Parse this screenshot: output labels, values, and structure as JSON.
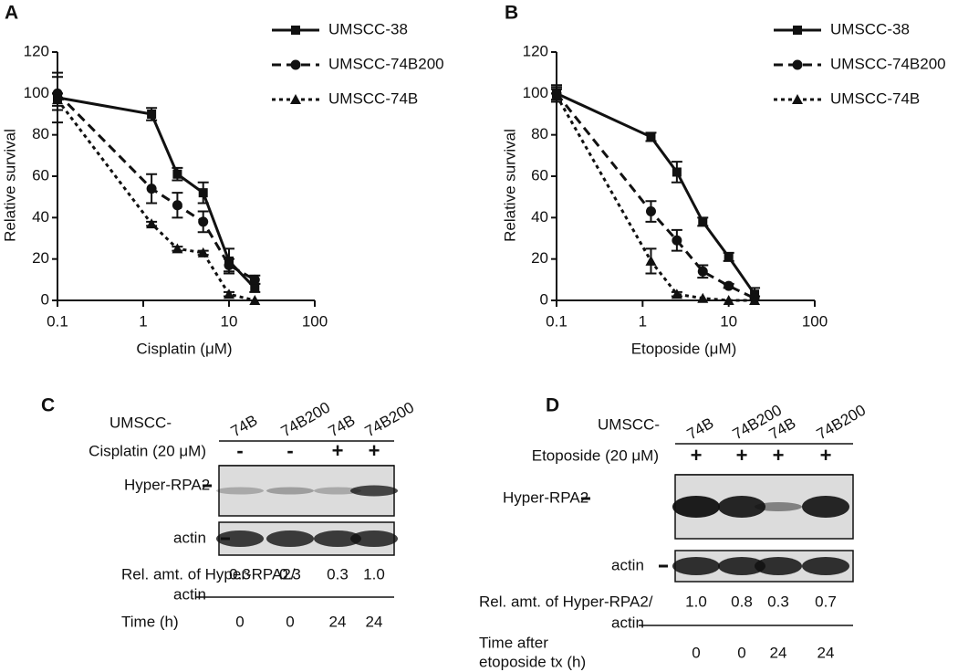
{
  "chart_data": [
    {
      "type": "line",
      "panel": "A",
      "xlabel": "Cisplatin (μM)",
      "ylabel": "Relative survival",
      "x": [
        0.1,
        1.25,
        2.5,
        5,
        10,
        20
      ],
      "xscale": "log",
      "xlim": [
        0.1,
        100
      ],
      "xticks": [
        0.1,
        1,
        10,
        100
      ],
      "ylim": [
        0,
        120
      ],
      "yticks": [
        0,
        20,
        40,
        60,
        80,
        100,
        120
      ],
      "series": [
        {
          "name": "UMSCC-38",
          "color": "#111111",
          "marker": "square",
          "line_style": "solid",
          "values": [
            98,
            90,
            61,
            52,
            19,
            6
          ],
          "errors": [
            12,
            3,
            3,
            5,
            6,
            2
          ]
        },
        {
          "name": "UMSCC-74B200",
          "color": "#111111",
          "marker": "circle",
          "line_style": "dashed",
          "values": [
            100,
            54,
            46,
            38,
            17,
            10
          ],
          "errors": [
            8,
            7,
            6,
            5,
            3,
            2
          ]
        },
        {
          "name": "UMSCC-74B",
          "color": "#111111",
          "marker": "triangle",
          "line_style": "dotted",
          "values": [
            97,
            37,
            25,
            23,
            3,
            0
          ],
          "errors": [
            3,
            1,
            1,
            1,
            1,
            0
          ]
        }
      ]
    },
    {
      "type": "line",
      "panel": "B",
      "xlabel": "Etoposide (μM)",
      "ylabel": "Relative survival",
      "x": [
        0.1,
        1.25,
        2.5,
        5,
        10,
        20
      ],
      "xscale": "log",
      "xlim": [
        0.1,
        100
      ],
      "xticks": [
        0.1,
        1,
        10,
        100
      ],
      "ylim": [
        0,
        120
      ],
      "yticks": [
        0,
        20,
        40,
        60,
        80,
        100,
        120
      ],
      "series": [
        {
          "name": "UMSCC-38",
          "color": "#111111",
          "marker": "square",
          "line_style": "solid",
          "values": [
            100,
            79,
            62,
            38,
            21,
            3
          ],
          "errors": [
            4,
            2,
            5,
            2,
            2,
            3
          ]
        },
        {
          "name": "UMSCC-74B200",
          "color": "#111111",
          "marker": "circle",
          "line_style": "dashed",
          "values": [
            100,
            43,
            29,
            14,
            7,
            1
          ],
          "errors": [
            3,
            5,
            5,
            3,
            1,
            1
          ]
        },
        {
          "name": "UMSCC-74B",
          "color": "#111111",
          "marker": "triangle",
          "line_style": "dotted",
          "values": [
            99,
            19,
            3,
            1,
            0,
            0
          ],
          "errors": [
            3,
            6,
            1,
            0,
            0,
            0
          ]
        }
      ]
    }
  ],
  "blots": [
    {
      "panel": "C",
      "cell_line_label": "UMSCC-",
      "lanes": [
        "74B",
        "74B200",
        "74B",
        "74B200"
      ],
      "treatment_label": "Cisplatin (20 μM)",
      "treatment": [
        "-",
        "-",
        "+",
        "+"
      ],
      "band_labels": [
        "Hyper-RPA2",
        "actin"
      ],
      "ratio_label": [
        "Rel. amt. of Hyper-RPA2/",
        "actin"
      ],
      "ratios": [
        "0.3",
        "0.3",
        "0.3",
        "1.0"
      ],
      "time_label": [
        "Time (h)"
      ],
      "times": [
        0,
        0,
        24,
        24
      ]
    },
    {
      "panel": "D",
      "cell_line_label": "UMSCC-",
      "lanes": [
        "74B",
        "74B200",
        "74B",
        "74B200"
      ],
      "treatment_label": "Etoposide (20 μM)",
      "treatment": [
        "+",
        "+",
        "+",
        "+"
      ],
      "band_labels": [
        "Hyper-RPA2",
        "actin"
      ],
      "ratio_label": [
        "Rel. amt. of Hyper-RPA2/",
        "actin"
      ],
      "ratios": [
        "1.0",
        "0.8",
        "0.3",
        "0.7"
      ],
      "time_label": [
        "Time after",
        "etoposide tx (h)"
      ],
      "times": [
        0,
        0,
        24,
        24
      ]
    }
  ]
}
